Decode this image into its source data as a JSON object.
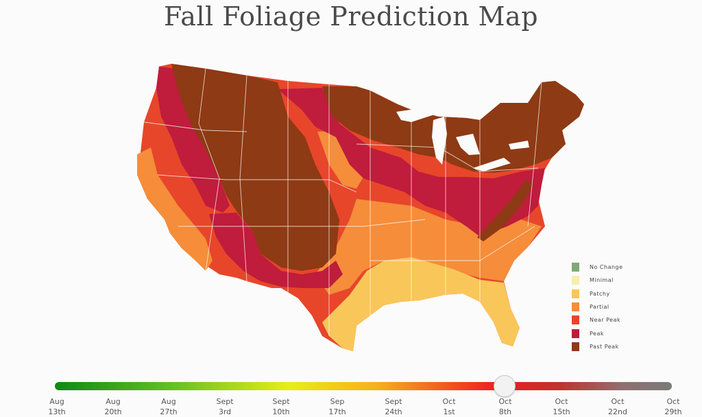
{
  "title": "Fall Foliage Prediction Map",
  "legend": [
    {
      "label": "No Change",
      "color": "#7fa877"
    },
    {
      "label": "Minimal",
      "color": "#f6eeaa"
    },
    {
      "label": "Patchy",
      "color": "#f9c659"
    },
    {
      "label": "Partial",
      "color": "#f58d3a"
    },
    {
      "label": "Near Peak",
      "color": "#e7462a"
    },
    {
      "label": "Peak",
      "color": "#c01c3c"
    },
    {
      "label": "Past Peak",
      "color": "#8e3a14"
    }
  ],
  "timeline": {
    "ticks": [
      {
        "month": "Aug",
        "day": "13th"
      },
      {
        "month": "Aug",
        "day": "20th"
      },
      {
        "month": "Aug",
        "day": "27th"
      },
      {
        "month": "Sept",
        "day": "3rd"
      },
      {
        "month": "Sept",
        "day": "10th"
      },
      {
        "month": "Sep",
        "day": "17th"
      },
      {
        "month": "Sept",
        "day": "24th"
      },
      {
        "month": "Oct",
        "day": "1st"
      },
      {
        "month": "Oct",
        "day": "8th"
      },
      {
        "month": "Oct",
        "day": "15th"
      },
      {
        "month": "Oct",
        "day": "22nd"
      },
      {
        "month": "Oct",
        "day": "29th"
      }
    ],
    "selected_index": 8
  }
}
